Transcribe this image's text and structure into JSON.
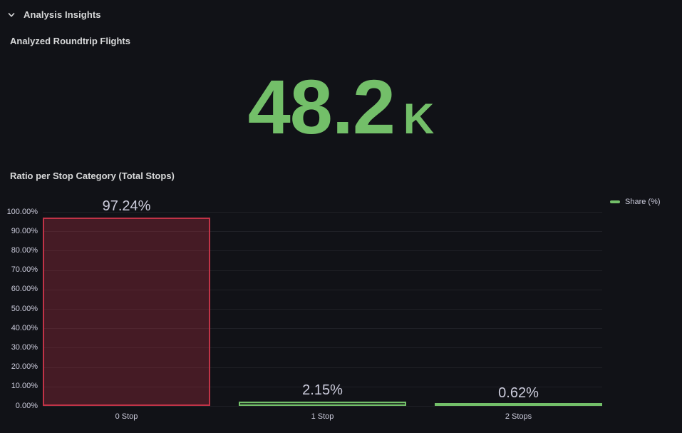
{
  "colors": {
    "background": "#111217",
    "text": "#ccccdc",
    "title_text": "#d8d9da",
    "stat_green": "#73BF69",
    "grid": "rgba(204,204,220,0.08)"
  },
  "section": {
    "title": "Analysis Insights"
  },
  "stat_panel": {
    "title": "Analyzed Roundtrip Flights",
    "value": "48.2",
    "suffix": "K",
    "value_color": "#73BF69"
  },
  "bar_panel": {
    "title": "Ratio per Stop Category (Total Stops)",
    "legend_label": "Share (%)",
    "legend_color": "#73BF69"
  },
  "chart_data": {
    "type": "bar",
    "title": "Ratio per Stop Category (Total Stops)",
    "categories": [
      "0 Stop",
      "1 Stop",
      "2 Stops"
    ],
    "series": [
      {
        "name": "Share (%)",
        "values": [
          97.24,
          2.15,
          0.62
        ]
      }
    ],
    "value_labels": [
      "97.24%",
      "2.15%",
      "0.62%"
    ],
    "y_ticks": [
      "0.00%",
      "10.00%",
      "20.00%",
      "30.00%",
      "40.00%",
      "50.00%",
      "60.00%",
      "70.00%",
      "80.00%",
      "90.00%",
      "100.00%"
    ],
    "ylim": [
      0,
      100
    ],
    "grid": true,
    "legend_position": "right-top",
    "bar_styles": [
      {
        "border": "#C13347",
        "fill": "rgba(193,51,71,0.3)"
      },
      {
        "border": "#73BF69",
        "fill": "rgba(115,191,105,0.22)"
      },
      {
        "border": "#73BF69",
        "fill": "rgba(115,191,105,0.22)"
      }
    ]
  }
}
